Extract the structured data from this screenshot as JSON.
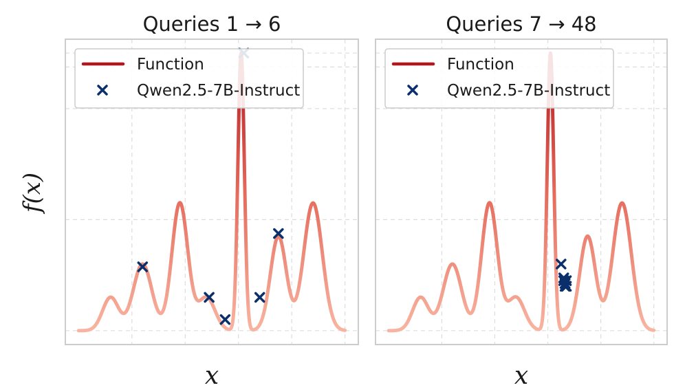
{
  "colors": {
    "function_low": "#f8b4a0",
    "function_high": "#b3171d",
    "marker": "#0b2f6b",
    "frame": "#cccccc",
    "grid": "#dddddd"
  },
  "chart_data": [
    {
      "type": "line",
      "title": "Queries 1 → 6",
      "xlabel": "x",
      "ylabel": "f(x)",
      "grid": true,
      "legend_position": "top-left",
      "xlim": [
        -0.05,
        1.05
      ],
      "ylim": [
        -0.05,
        1.05
      ],
      "x_ticks": [
        0.2,
        0.4,
        0.6,
        0.8,
        1.0
      ],
      "y_ticks": [
        0.0,
        0.4,
        0.8,
        0.95,
        1.0
      ],
      "series": [
        {
          "name": "Function",
          "kind": "line",
          "values_note": "",
          "style": "gradient-line"
        },
        {
          "name": "Qwen2.5-7B-Instruct",
          "kind": "scatter",
          "marker": "x",
          "x": [
            0.24,
            0.49,
            0.55,
            0.62,
            0.68,
            0.75
          ],
          "y": [
            0.23,
            0.12,
            0.04,
            1.0,
            0.12,
            0.35
          ]
        }
      ]
    },
    {
      "type": "line",
      "title": "Queries 7 → 48",
      "xlabel": "x",
      "ylabel": "",
      "grid": true,
      "legend_position": "top-left",
      "xlim": [
        -0.05,
        1.05
      ],
      "ylim": [
        -0.05,
        1.05
      ],
      "x_ticks": [
        0.2,
        0.4,
        0.6,
        0.8,
        1.0
      ],
      "y_ticks": [
        0.0,
        0.4,
        0.8,
        0.95,
        1.0
      ],
      "series": [
        {
          "name": "Function",
          "kind": "line",
          "style": "gradient-line"
        },
        {
          "name": "Qwen2.5-7B-Instruct",
          "kind": "scatter",
          "marker": "x",
          "x": [
            0.65,
            0.66,
            0.665,
            0.665,
            0.67,
            0.67,
            0.665,
            0.66
          ],
          "y": [
            0.24,
            0.18,
            0.17,
            0.16,
            0.18,
            0.16,
            0.17,
            0.19
          ]
        }
      ]
    }
  ]
}
